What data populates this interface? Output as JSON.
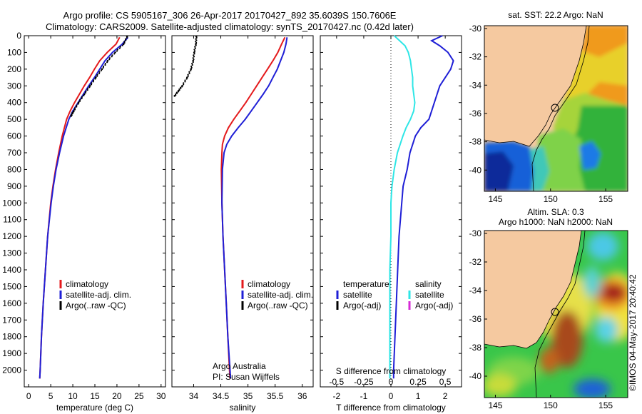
{
  "title": {
    "line1": "Argo profile: CS 5905167_306 26-Apr-2017 20170427_892 35.6039S 150.7606E",
    "line2": "Climatology: CARS2009. Satellite-adjusted climatology: synTS_20170427.nc (0.42d later)"
  },
  "side_stamp": "©IMOS 04-May-2017 20:40:42",
  "colors": {
    "climatology": "#e41a1c",
    "satellite": "#1f1fd6",
    "argo": "#000000",
    "salinity_sat": "#2ee6e6",
    "salinity_argo": "#d62ad6",
    "land": "#f5c9a0"
  },
  "chart_data": [
    {
      "id": "temperature",
      "type": "line",
      "xlabel": "temperature (deg C)",
      "ylabel": "",
      "xlim": [
        -1,
        31
      ],
      "ylim": [
        2100,
        0
      ],
      "xticks": [
        0,
        5,
        10,
        15,
        20,
        25,
        30
      ],
      "yticks": [
        0,
        100,
        200,
        300,
        400,
        500,
        600,
        700,
        800,
        900,
        1000,
        1100,
        1200,
        1300,
        1400,
        1500,
        1600,
        1700,
        1800,
        1900,
        2000
      ],
      "legend": {
        "placement": "lower-center",
        "entries": [
          "climatology",
          "satellite-adj. clim.",
          "Argo(..raw -QC)"
        ]
      },
      "series": [
        {
          "name": "climatology",
          "role": "climatology",
          "style": "line",
          "depth": [
            10,
            50,
            100,
            150,
            200,
            250,
            300,
            400,
            450,
            500,
            600,
            700,
            800,
            900,
            1000,
            1200,
            1400,
            1600,
            1800,
            2000,
            2050
          ],
          "values": [
            20.6,
            19.8,
            17.8,
            16.1,
            14.9,
            13.8,
            12.6,
            10.4,
            9.4,
            8.6,
            7.6,
            6.8,
            6.1,
            5.5,
            5.0,
            4.3,
            3.8,
            3.3,
            2.9,
            2.6,
            2.5
          ]
        },
        {
          "name": "satellite-adj. clim.",
          "role": "satellite",
          "style": "line",
          "depth": [
            10,
            50,
            100,
            150,
            200,
            250,
            300,
            400,
            450,
            500,
            600,
            700,
            800,
            900,
            1000,
            1200,
            1400,
            1600,
            1800,
            2000,
            2050
          ],
          "values": [
            22.5,
            21.2,
            19.0,
            17.3,
            16.1,
            14.9,
            13.6,
            11.2,
            10.0,
            9.1,
            7.9,
            7.0,
            6.2,
            5.6,
            5.1,
            4.3,
            3.8,
            3.3,
            2.9,
            2.6,
            2.5
          ]
        },
        {
          "name": "Argo(..raw -QC)",
          "role": "argo",
          "style": "dots",
          "depth": [
            5,
            50,
            100,
            150,
            200,
            250,
            300,
            350,
            400,
            450,
            480
          ],
          "values": [
            22.3,
            21.5,
            19.6,
            17.9,
            16.6,
            15.2,
            13.9,
            12.6,
            11.3,
            10.2,
            9.6
          ]
        }
      ]
    },
    {
      "id": "salinity",
      "type": "line",
      "xlabel": "salinity",
      "ylabel": "",
      "xlim": [
        33.6,
        36.2
      ],
      "ylim": [
        2100,
        0
      ],
      "xticks": [
        34,
        34.5,
        35,
        35.5,
        36
      ],
      "legend": {
        "placement": "lower-right",
        "entries": [
          "climatology",
          "satellite-adj. clim.",
          "Argo(..raw -QC)"
        ]
      },
      "annotation": [
        "Argo Australia",
        "PI: Susan Wijffels"
      ],
      "series": [
        {
          "name": "climatology",
          "role": "climatology",
          "style": "line",
          "depth": [
            10,
            50,
            100,
            150,
            200,
            250,
            300,
            350,
            400,
            450,
            500,
            550,
            600,
            650,
            700,
            800,
            1000,
            1200,
            1400,
            1600,
            1800,
            2000,
            2050
          ],
          "values": [
            35.68,
            35.62,
            35.55,
            35.46,
            35.36,
            35.26,
            35.16,
            35.06,
            34.96,
            34.85,
            34.74,
            34.64,
            34.57,
            34.53,
            34.52,
            34.51,
            34.52,
            34.54,
            34.57,
            34.6,
            34.63,
            34.66,
            34.67
          ]
        },
        {
          "name": "satellite-adj. clim.",
          "role": "satellite",
          "style": "line",
          "depth": [
            10,
            50,
            100,
            150,
            200,
            250,
            300,
            350,
            400,
            450,
            500,
            550,
            600,
            650,
            700,
            800,
            1000,
            1200,
            1400,
            1600,
            1800,
            2000,
            2050
          ],
          "values": [
            35.72,
            35.7,
            35.66,
            35.6,
            35.54,
            35.46,
            35.38,
            35.28,
            35.17,
            35.06,
            34.95,
            34.82,
            34.7,
            34.61,
            34.56,
            34.53,
            34.52,
            34.54,
            34.57,
            34.6,
            34.63,
            34.67,
            34.68
          ]
        },
        {
          "name": "Argo(..raw -QC)",
          "role": "argo",
          "style": "dots",
          "depth": [
            5,
            50,
            100,
            150,
            200,
            250,
            300,
            330,
            360
          ],
          "values": [
            34.05,
            34.04,
            34.01,
            33.99,
            33.95,
            33.88,
            33.79,
            33.72,
            33.65
          ]
        }
      ]
    },
    {
      "id": "difference",
      "type": "line",
      "xlabel": "T difference from climatology",
      "xlabel_top": "S difference from climatology",
      "xlim": [
        -2.6,
        2.6
      ],
      "ylim": [
        2100,
        0
      ],
      "xticks": [
        -2,
        -1,
        0,
        1,
        2
      ],
      "xticks_S": [
        -0.5,
        -0.25,
        0,
        0.25,
        0.5
      ],
      "zero_line": "dotted",
      "legend": {
        "placement": "lower-center",
        "temperature": {
          "heading": "temperature",
          "entries": [
            "satellite",
            "Argo(-adj)"
          ]
        },
        "salinity": {
          "heading": "salinity",
          "entries": [
            "satellite",
            "Argo(-adj)"
          ]
        }
      },
      "series": [
        {
          "name": "satellite",
          "role": "satellite",
          "quantity": "temperature",
          "depth": [
            0,
            30,
            60,
            100,
            150,
            200,
            250,
            300,
            350,
            400,
            450,
            500,
            550,
            600,
            700,
            800,
            900,
            1000,
            1200,
            1400,
            1600,
            1800,
            2000,
            2050
          ],
          "values": [
            1.9,
            1.5,
            1.8,
            2.1,
            2.3,
            2.2,
            2.0,
            1.8,
            1.7,
            1.6,
            1.5,
            1.4,
            1.1,
            0.9,
            0.7,
            0.6,
            0.45,
            0.4,
            0.3,
            0.25,
            0.2,
            0.15,
            0.1,
            0.1
          ]
        },
        {
          "name": "satellite",
          "role": "salinity_sat",
          "quantity": "salinity",
          "depth": [
            0,
            30,
            60,
            100,
            150,
            200,
            250,
            300,
            350,
            400,
            450,
            500,
            550,
            600,
            700,
            800,
            900,
            1000,
            1200,
            1400,
            1600,
            1800,
            2000,
            2050
          ],
          "values": [
            0.03,
            0.08,
            0.13,
            0.16,
            0.18,
            0.19,
            0.2,
            0.2,
            0.21,
            0.22,
            0.21,
            0.18,
            0.14,
            0.11,
            0.06,
            0.03,
            0.01,
            0.0,
            0.0,
            -0.01,
            -0.01,
            -0.01,
            -0.01,
            -0.01
          ]
        }
      ]
    },
    {
      "id": "sst_map",
      "type": "heatmap",
      "title": "sat. SST: 22.2 Argo: NaN",
      "xlim": [
        144,
        157
      ],
      "ylim": [
        -41.5,
        -29.8
      ],
      "xticks": [
        145,
        150,
        155
      ],
      "yticks": [
        -30,
        -32,
        -34,
        -36,
        -38,
        -40
      ],
      "marker": {
        "lon": 150.76,
        "lat": -35.6,
        "shape": "circle"
      }
    },
    {
      "id": "sla_map",
      "type": "heatmap",
      "title_line1": "Altim. SLA: 0.3",
      "title_line2": "Argo h1000: NaN h2000: NaN",
      "xlim": [
        144,
        157
      ],
      "ylim": [
        -41.5,
        -29.8
      ],
      "xticks": [
        145,
        150,
        155
      ],
      "yticks": [
        -30,
        -32,
        -34,
        -36,
        -38,
        -40
      ],
      "marker": {
        "lon": 150.76,
        "lat": -35.6,
        "shape": "circle"
      }
    }
  ]
}
